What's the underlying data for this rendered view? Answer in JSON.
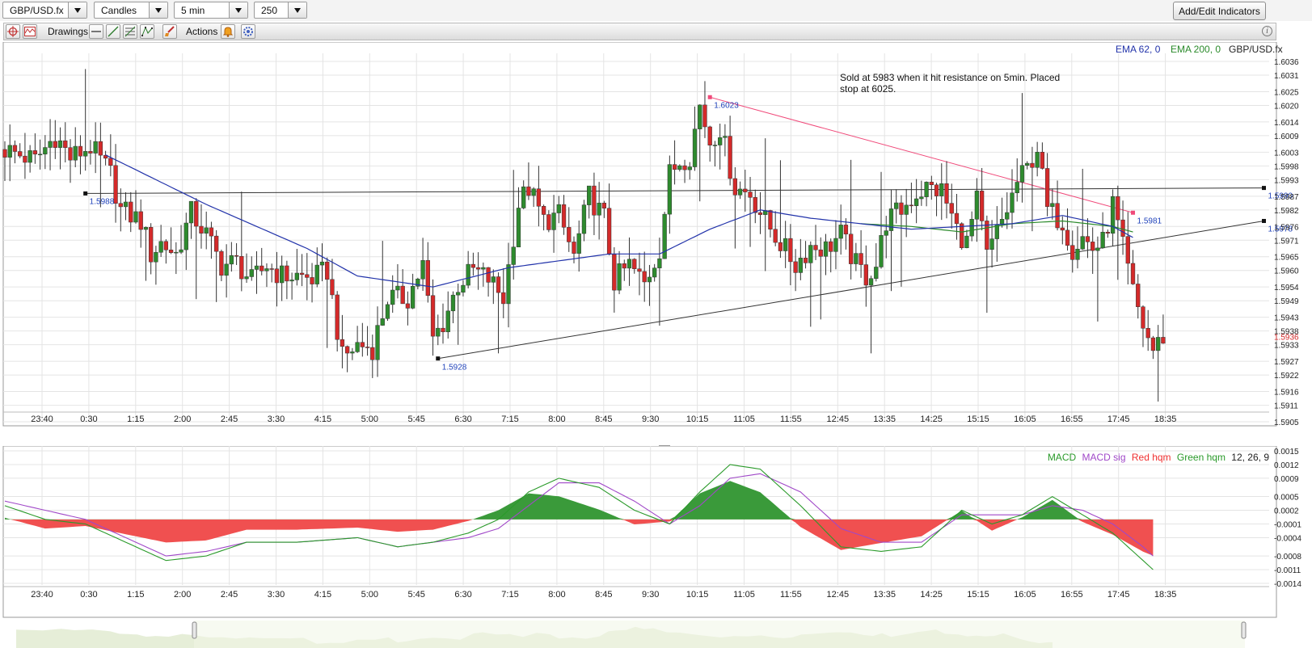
{
  "controls": {
    "symbol": "GBP/USD.fx",
    "chart_type": "Candles",
    "timeframe": "5 min",
    "bar_count": "250",
    "add_indicators": "Add/Edit Indicators"
  },
  "toolbar": {
    "drawings_label": "Drawings",
    "actions_label": "Actions"
  },
  "main_legend": {
    "ema62": "EMA 62, 0",
    "ema200": "EMA 200, 0",
    "symbol": "GBP/USD.fx"
  },
  "colors": {
    "bull": "#2e8b2e",
    "bear": "#d42a2a",
    "ema62": "#2233aa",
    "ema200": "#2a8a2a",
    "trendline_red": "#f04a7a",
    "price_marker": "#d42a2a",
    "macd": "#2a9a2a",
    "macd_signal": "#a048c8",
    "hist_red": "#f05050",
    "hist_green": "#3a9a3a",
    "label_blue": "#2244bb"
  },
  "annotation": {
    "line1": "Sold at 5983 when it hit resistance on 5min. Placed",
    "line2": "stop at 6025."
  },
  "drawing_labels": {
    "h_line_left": "1.5988",
    "h_line_right": "1.5990",
    "trend_low": "1.5928",
    "trend_right": "1.5978",
    "red_high": "1.6023",
    "red_right": "1.5981"
  },
  "current_price_label": "1.5936",
  "macd_legend": {
    "macd": "MACD",
    "sig": "MACD sig",
    "red": "Red hqm",
    "green": "Green hqm",
    "params": "12, 26, 9"
  },
  "chart_data": [
    {
      "type": "candlestick",
      "x_ticks": [
        "23:40",
        "0:30",
        "1:15",
        "2:00",
        "2:45",
        "3:30",
        "4:15",
        "5:00",
        "5:45",
        "6:30",
        "7:15",
        "8:00",
        "8:45",
        "9:30",
        "10:15",
        "11:05",
        "11:55",
        "12:45",
        "13:35",
        "14:25",
        "15:15",
        "16:05",
        "16:55",
        "17:45",
        "18:35"
      ],
      "y_ticks": [
        "1.6036",
        "1.6031",
        "1.6025",
        "1.6020",
        "1.6014",
        "1.6009",
        "1.6003",
        "1.5998",
        "1.5993",
        "1.5987",
        "1.5982",
        "1.5976",
        "1.5971",
        "1.5965",
        "1.5960",
        "1.5954",
        "1.5949",
        "1.5943",
        "1.5938",
        "1.5933",
        "1.5927",
        "1.5922",
        "1.5916",
        "1.5911",
        "1.5905"
      ],
      "ylim": [
        1.5905,
        1.6036
      ],
      "close_path": [
        [
          0,
          1.6004
        ],
        [
          6,
          1.6
        ],
        [
          10,
          1.6009
        ],
        [
          13,
          1.6001
        ],
        [
          17,
          1.6005
        ],
        [
          21,
          1.5995
        ],
        [
          23,
          1.5982
        ],
        [
          27,
          1.5978
        ],
        [
          29,
          1.5966
        ],
        [
          31,
          1.597
        ],
        [
          34,
          1.5966
        ],
        [
          37,
          1.5981
        ],
        [
          40,
          1.5973
        ],
        [
          43,
          1.5962
        ],
        [
          46,
          1.5963
        ],
        [
          49,
          1.5956
        ],
        [
          52,
          1.5962
        ],
        [
          55,
          1.5958
        ],
        [
          58,
          1.5958
        ],
        [
          61,
          1.5957
        ],
        [
          64,
          1.596
        ],
        [
          67,
          1.5928
        ],
        [
          70,
          1.5933
        ],
        [
          73,
          1.5932
        ],
        [
          76,
          1.595
        ],
        [
          80,
          1.595
        ],
        [
          83,
          1.5962
        ],
        [
          85,
          1.5935
        ],
        [
          87,
          1.5941
        ],
        [
          90,
          1.5955
        ],
        [
          93,
          1.596
        ],
        [
          96,
          1.5957
        ],
        [
          99,
          1.595
        ],
        [
          102,
          1.5984
        ],
        [
          104,
          1.599
        ],
        [
          107,
          1.5978
        ],
        [
          110,
          1.598
        ],
        [
          113,
          1.5965
        ],
        [
          116,
          1.5987
        ],
        [
          119,
          1.5979
        ],
        [
          121,
          1.5956
        ],
        [
          124,
          1.5962
        ],
        [
          127,
          1.5955
        ],
        [
          130,
          1.5968
        ],
        [
          132,
          1.5995
        ],
        [
          134,
          1.6
        ],
        [
          136,
          1.6002
        ],
        [
          138,
          1.602
        ],
        [
          140,
          1.6007
        ],
        [
          142,
          1.6012
        ],
        [
          145,
          1.599
        ],
        [
          148,
          1.5988
        ],
        [
          151,
          1.5978
        ],
        [
          154,
          1.597
        ],
        [
          157,
          1.5962
        ],
        [
          160,
          1.5969
        ],
        [
          163,
          1.5968
        ],
        [
          166,
          1.5973
        ],
        [
          169,
          1.5962
        ],
        [
          171,
          1.5958
        ],
        [
          173,
          1.5962
        ],
        [
          175,
          1.5978
        ],
        [
          178,
          1.5982
        ],
        [
          181,
          1.5988
        ],
        [
          183,
          1.599
        ],
        [
          186,
          1.5989
        ],
        [
          189,
          1.5975
        ],
        [
          191,
          1.597
        ],
        [
          193,
          1.5985
        ],
        [
          195,
          1.5965
        ],
        [
          197,
          1.5974
        ],
        [
          199,
          1.5982
        ],
        [
          201,
          1.5992
        ],
        [
          203,
          1.5997
        ],
        [
          205,
          1.6005
        ],
        [
          207,
          1.5982
        ],
        [
          210,
          1.5978
        ],
        [
          212,
          1.5968
        ],
        [
          214,
          1.5972
        ],
        [
          216,
          1.5968
        ],
        [
          218,
          1.597
        ],
        [
          220,
          1.5984
        ],
        [
          222,
          1.5968
        ],
        [
          224,
          1.5952
        ],
        [
          226,
          1.594
        ],
        [
          228,
          1.5931
        ],
        [
          230,
          1.5936
        ]
      ],
      "ema62": [
        [
          20,
          1.6002
        ],
        [
          40,
          1.5984
        ],
        [
          60,
          1.5968
        ],
        [
          70,
          1.5958
        ],
        [
          85,
          1.5954
        ],
        [
          100,
          1.5961
        ],
        [
          120,
          1.5966
        ],
        [
          130,
          1.5966
        ],
        [
          140,
          1.5975
        ],
        [
          150,
          1.5982
        ],
        [
          160,
          1.5979
        ],
        [
          170,
          1.5977
        ],
        [
          180,
          1.5975
        ],
        [
          190,
          1.5976
        ],
        [
          200,
          1.5977
        ],
        [
          210,
          1.598
        ],
        [
          220,
          1.5976
        ],
        [
          224,
          1.5972
        ]
      ],
      "ema200": [
        [
          170,
          1.5977
        ],
        [
          180,
          1.5976
        ],
        [
          190,
          1.5974
        ],
        [
          200,
          1.5977
        ],
        [
          210,
          1.5978
        ],
        [
          220,
          1.5976
        ],
        [
          224,
          1.5974
        ]
      ],
      "drawings": [
        {
          "kind": "horizontal",
          "from": [
            16,
            1.5988
          ],
          "to": [
            250,
            1.599
          ]
        },
        {
          "kind": "trend",
          "from": [
            86,
            1.5928
          ],
          "to": [
            250,
            1.5978
          ]
        },
        {
          "kind": "trend",
          "from": [
            140,
            1.6023
          ],
          "to": [
            224,
            1.5981
          ]
        }
      ],
      "last_price": 1.5936
    },
    {
      "type": "line+histogram",
      "y_ticks": [
        "0.0015",
        "0.0012",
        "0.0009",
        "0.0005",
        "0.0002",
        "-0.0001",
        "-0.0004",
        "-0.0008",
        "-0.0011",
        "-0.0014"
      ],
      "ylim": [
        -0.0014,
        0.0015
      ],
      "x_ticks": [
        "23:40",
        "0:30",
        "1:15",
        "2:00",
        "2:45",
        "3:30",
        "4:15",
        "5:00",
        "5:45",
        "6:30",
        "7:15",
        "8:00",
        "8:45",
        "9:30",
        "10:15",
        "11:05",
        "11:55",
        "12:45",
        "13:35",
        "14:25",
        "15:15",
        "16:05",
        "16:55",
        "17:45",
        "18:35"
      ],
      "macd": [
        [
          0,
          0.0003
        ],
        [
          8,
          0.0
        ],
        [
          16,
          -0.0001
        ],
        [
          24,
          -0.0005
        ],
        [
          32,
          -0.0009
        ],
        [
          40,
          -0.0008
        ],
        [
          48,
          -0.0005
        ],
        [
          58,
          -0.0005
        ],
        [
          70,
          -0.0004
        ],
        [
          78,
          -0.0006
        ],
        [
          85,
          -0.0005
        ],
        [
          92,
          -0.0003
        ],
        [
          98,
          0.0
        ],
        [
          104,
          0.0006
        ],
        [
          110,
          0.0009
        ],
        [
          118,
          0.0007
        ],
        [
          125,
          0.0002
        ],
        [
          132,
          -0.0001
        ],
        [
          138,
          0.0006
        ],
        [
          144,
          0.0012
        ],
        [
          150,
          0.0011
        ],
        [
          158,
          0.0003
        ],
        [
          166,
          -0.0006
        ],
        [
          174,
          -0.0007
        ],
        [
          182,
          -0.0006
        ],
        [
          190,
          0.0002
        ],
        [
          196,
          -0.0001
        ],
        [
          202,
          0.0001
        ],
        [
          208,
          0.0005
        ],
        [
          214,
          0.0001
        ],
        [
          220,
          -0.0003
        ],
        [
          226,
          -0.0009
        ],
        [
          228,
          -0.0011
        ]
      ],
      "signal": [
        [
          0,
          0.0004
        ],
        [
          8,
          0.0002
        ],
        [
          16,
          0.0
        ],
        [
          24,
          -0.0004
        ],
        [
          32,
          -0.0008
        ],
        [
          40,
          -0.0007
        ],
        [
          48,
          -0.0005
        ],
        [
          58,
          -0.0005
        ],
        [
          70,
          -0.0004
        ],
        [
          78,
          -0.0006
        ],
        [
          85,
          -0.0005
        ],
        [
          92,
          -0.0004
        ],
        [
          98,
          -0.0002
        ],
        [
          104,
          0.0003
        ],
        [
          110,
          0.0008
        ],
        [
          118,
          0.0008
        ],
        [
          125,
          0.0004
        ],
        [
          132,
          -0.0001
        ],
        [
          138,
          0.0003
        ],
        [
          144,
          0.0009
        ],
        [
          150,
          0.001
        ],
        [
          158,
          0.0006
        ],
        [
          166,
          -0.0002
        ],
        [
          174,
          -0.0005
        ],
        [
          182,
          -0.0005
        ],
        [
          190,
          0.0001
        ],
        [
          196,
          0.0001
        ],
        [
          202,
          0.0001
        ],
        [
          208,
          0.0003
        ],
        [
          214,
          0.0002
        ],
        [
          220,
          -0.0001
        ],
        [
          226,
          -0.0006
        ],
        [
          228,
          -0.0008
        ]
      ]
    }
  ]
}
